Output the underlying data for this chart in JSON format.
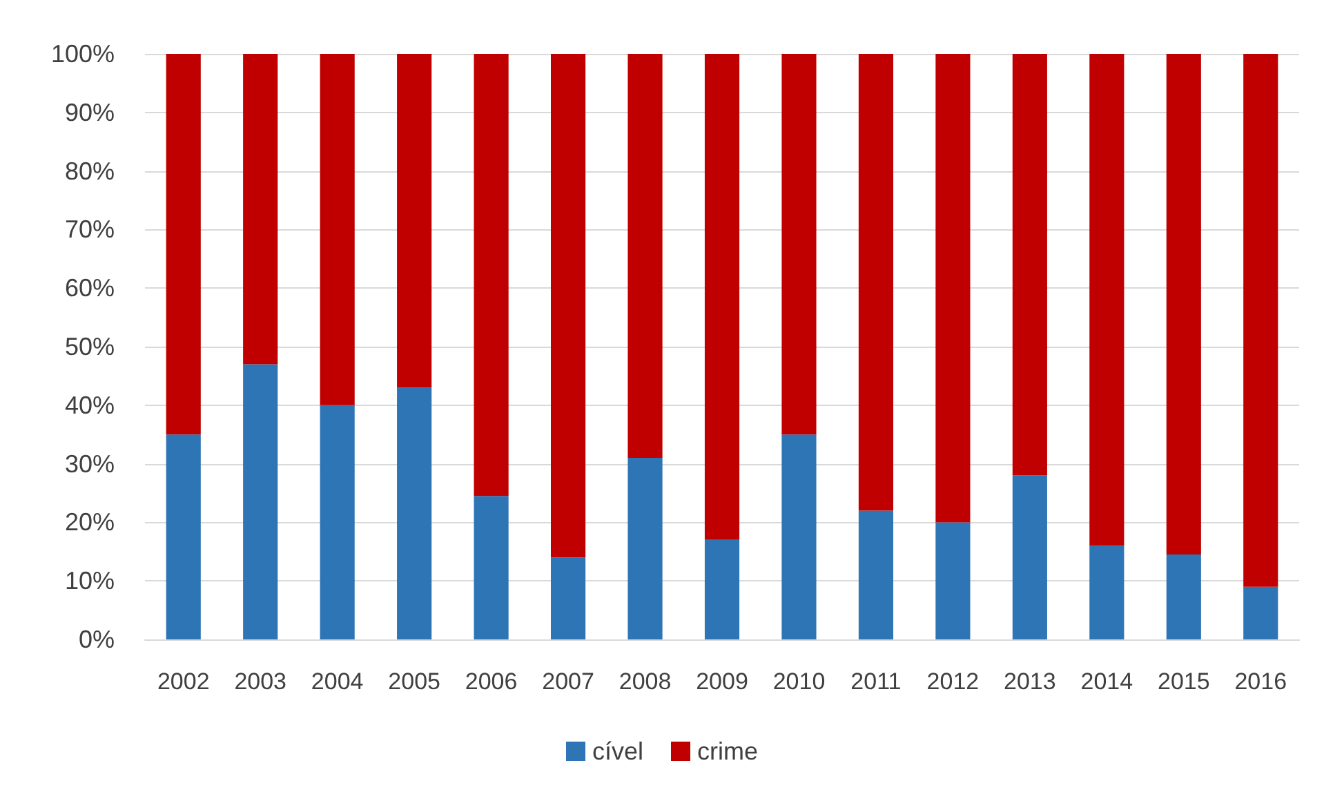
{
  "chart_data": {
    "type": "bar",
    "stacked": true,
    "categories": [
      "2002",
      "2003",
      "2004",
      "2005",
      "2006",
      "2007",
      "2008",
      "2009",
      "2010",
      "2011",
      "2012",
      "2013",
      "2014",
      "2015",
      "2016"
    ],
    "series": [
      {
        "name": "cível",
        "color": "#2e75b6",
        "values": [
          35,
          47,
          40,
          43,
          24.5,
          14,
          31,
          17,
          35,
          22,
          20,
          28,
          16,
          14.5,
          9
        ]
      },
      {
        "name": "crime",
        "color": "#c00000",
        "values": [
          65,
          53,
          60,
          57,
          75.5,
          86,
          69,
          83,
          65,
          78,
          80,
          72,
          84,
          85.5,
          91
        ]
      }
    ],
    "ylim": [
      0,
      100
    ],
    "yticks": [
      {
        "value": 0,
        "label": "0%"
      },
      {
        "value": 10,
        "label": "10%"
      },
      {
        "value": 20,
        "label": "20%"
      },
      {
        "value": 30,
        "label": "30%"
      },
      {
        "value": 40,
        "label": "40%"
      },
      {
        "value": 50,
        "label": "50%"
      },
      {
        "value": 60,
        "label": "60%"
      },
      {
        "value": 70,
        "label": "70%"
      },
      {
        "value": 80,
        "label": "80%"
      },
      {
        "value": 90,
        "label": "90%"
      },
      {
        "value": 100,
        "label": "100%"
      }
    ],
    "grid": "y",
    "legend": "bottom"
  }
}
